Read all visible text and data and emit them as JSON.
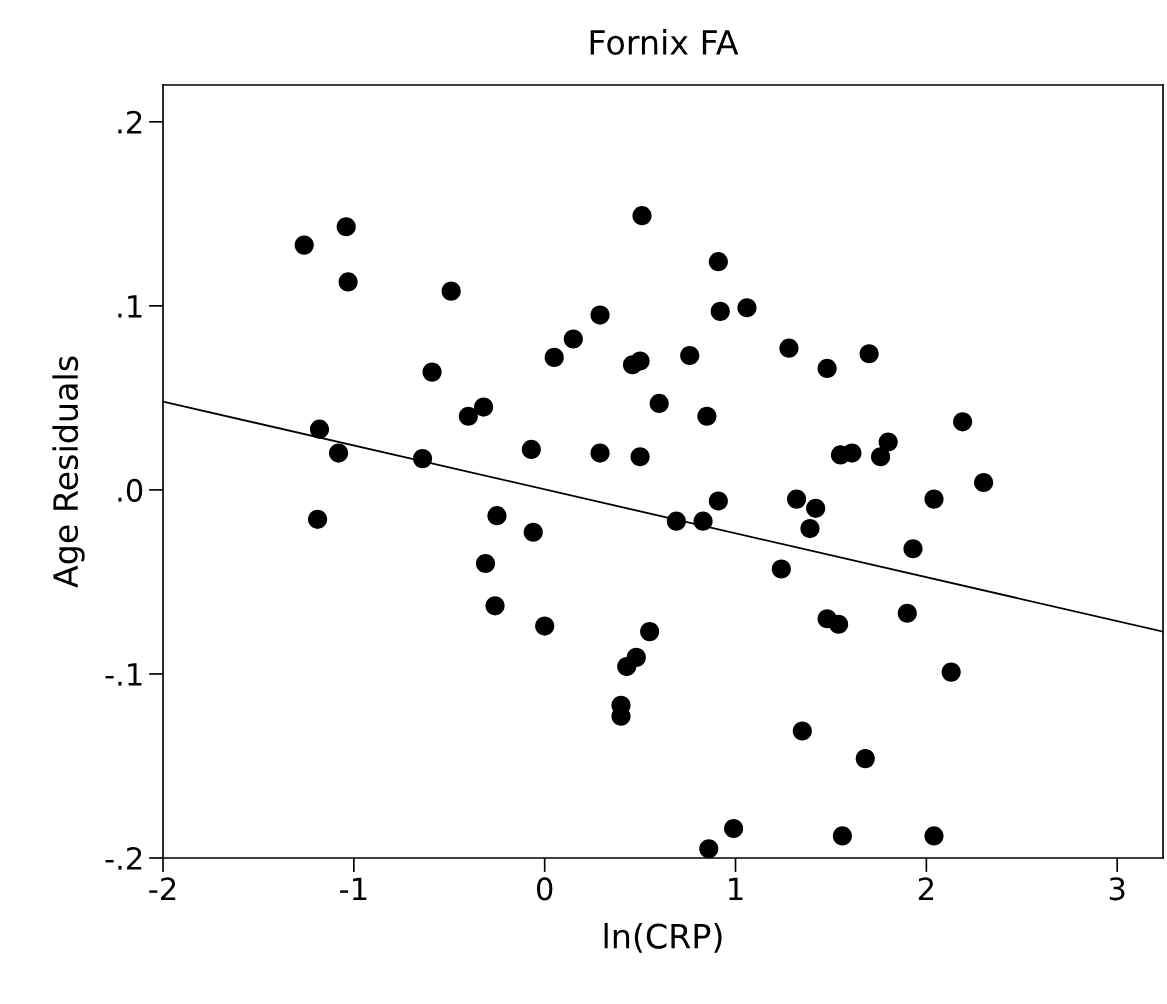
{
  "chart_data": {
    "type": "scatter",
    "title": "Fornix FA",
    "xlabel": "ln(CRP)",
    "ylabel": "Age Residuals",
    "xlim": [
      -2,
      3.24
    ],
    "ylim": [
      -0.2,
      0.22
    ],
    "xticks": [
      -2,
      -1,
      0,
      1,
      2,
      3
    ],
    "yticks": [
      {
        "value": -0.2,
        "label": "-.2"
      },
      {
        "value": -0.1,
        "label": "-.1"
      },
      {
        "value": 0,
        "label": ".0"
      },
      {
        "value": 0.1,
        "label": ".1"
      },
      {
        "value": 0.2,
        "label": ".2"
      }
    ],
    "grid": false,
    "legend": false,
    "series": [
      {
        "color": "#000000",
        "marker": "circle",
        "x": [
          -1.26,
          -1.04,
          -1.03,
          -1.18,
          -1.08,
          -1.19,
          -0.49,
          -0.59,
          -0.64,
          -0.4,
          -0.32,
          -0.07,
          -0.25,
          -0.31,
          -0.26,
          -0.06,
          0.0,
          0.05,
          0.15,
          0.29,
          0.29,
          0.51,
          0.46,
          0.5,
          0.5,
          0.6,
          0.55,
          0.43,
          0.48,
          0.4,
          0.4,
          0.76,
          0.83,
          0.69,
          0.91,
          0.85,
          0.91,
          0.92,
          1.06,
          0.86,
          0.99,
          1.28,
          1.24,
          1.32,
          1.42,
          1.39,
          1.35,
          1.48,
          1.48,
          1.54,
          1.55,
          1.61,
          1.7,
          1.68,
          1.56,
          1.8,
          1.76,
          1.93,
          1.9,
          2.04,
          2.04,
          2.19,
          2.13,
          2.3
        ],
        "values": [
          0.133,
          0.143,
          0.113,
          0.033,
          0.02,
          -0.016,
          0.108,
          0.064,
          0.017,
          0.04,
          0.045,
          0.022,
          -0.014,
          -0.04,
          -0.063,
          -0.023,
          -0.074,
          0.072,
          0.082,
          0.095,
          0.02,
          0.149,
          0.068,
          0.07,
          0.018,
          0.047,
          -0.077,
          -0.096,
          -0.091,
          -0.117,
          -0.123,
          0.073,
          -0.017,
          -0.017,
          -0.006,
          0.04,
          0.124,
          0.097,
          0.099,
          -0.195,
          -0.184,
          0.077,
          -0.043,
          -0.005,
          -0.01,
          -0.021,
          -0.131,
          0.066,
          -0.07,
          -0.073,
          0.019,
          0.02,
          0.074,
          -0.146,
          -0.188,
          0.026,
          0.018,
          -0.032,
          -0.067,
          -0.005,
          -0.188,
          0.037,
          -0.099,
          0.004
        ]
      },
      {
        "type": "line",
        "color": "#000000",
        "line_style": "solid",
        "x": [
          -2,
          3.24
        ],
        "values": [
          0.048,
          -0.077
        ]
      }
    ]
  }
}
